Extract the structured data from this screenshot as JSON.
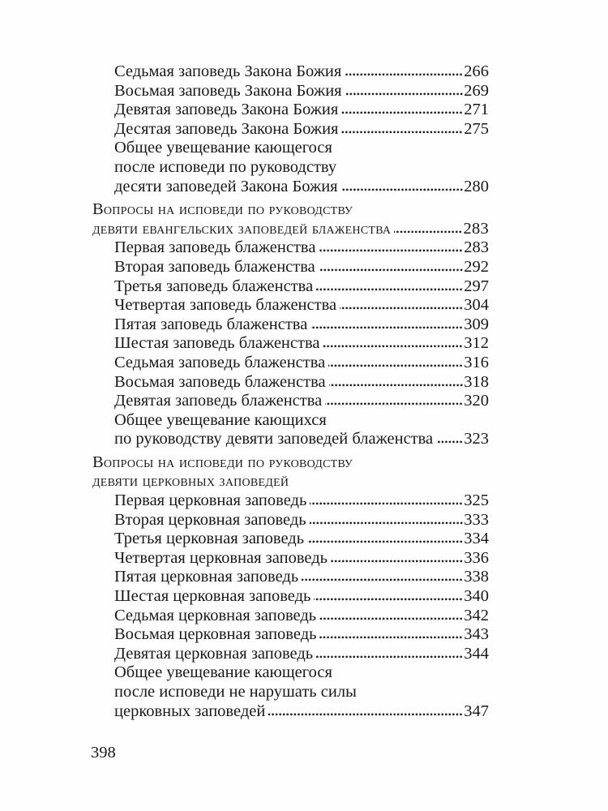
{
  "document": {
    "kind": "book-table-of-contents-scan",
    "language": "ru",
    "folio": "398",
    "background_color": "#fefefe",
    "text_color": "#1a1a1a"
  },
  "toc": {
    "sections": [
      {
        "items": [
          {
            "lines": [
              "Седьмая заповедь Закона Божия"
            ],
            "page": "266"
          },
          {
            "lines": [
              "Восьмая заповедь Закона Божия"
            ],
            "page": "269"
          },
          {
            "lines": [
              "Девятая заповедь Закона Божия"
            ],
            "page": "271"
          },
          {
            "lines": [
              "Десятая заповедь Закона Божия"
            ],
            "page": "275"
          },
          {
            "lines": [
              "Общее увещевание кающегося",
              "после исповеди по руководству",
              "десяти заповедей Закона Божия"
            ],
            "page": "280"
          }
        ]
      },
      {
        "header": {
          "lines": [
            "Вопросы на исповеди по руководству",
            "девяти евангельских заповедей блаженства"
          ],
          "page": "283"
        },
        "items": [
          {
            "lines": [
              "Первая заповедь блаженства"
            ],
            "page": "283"
          },
          {
            "lines": [
              "Вторая заповедь блаженства"
            ],
            "page": "292"
          },
          {
            "lines": [
              "Третья заповедь блаженства"
            ],
            "page": "297"
          },
          {
            "lines": [
              "Четвертая заповедь блаженства"
            ],
            "page": "304"
          },
          {
            "lines": [
              "Пятая заповедь блаженства"
            ],
            "page": "309"
          },
          {
            "lines": [
              "Шестая заповедь блаженства"
            ],
            "page": "312"
          },
          {
            "lines": [
              "Седьмая заповедь блаженства"
            ],
            "page": "316"
          },
          {
            "lines": [
              "Восьмая заповедь блаженства"
            ],
            "page": "318"
          },
          {
            "lines": [
              "Девятая заповедь блаженства"
            ],
            "page": "320"
          },
          {
            "lines": [
              "Общее увещевание кающихся",
              "по руководству девяти заповедей блаженства"
            ],
            "page": "323"
          }
        ]
      },
      {
        "header": {
          "lines": [
            "Вопросы на исповеди по руководству",
            "девяти церковных заповедей"
          ],
          "page": ""
        },
        "items": [
          {
            "lines": [
              "Первая церковная заповедь"
            ],
            "page": "325"
          },
          {
            "lines": [
              "Вторая церковная заповедь"
            ],
            "page": "333"
          },
          {
            "lines": [
              "Третья церковная заповедь"
            ],
            "page": "334"
          },
          {
            "lines": [
              "Четвертая церковная заповедь"
            ],
            "page": "336"
          },
          {
            "lines": [
              "Пятая церковная заповедь"
            ],
            "page": "338"
          },
          {
            "lines": [
              "Шестая церковная заповедь"
            ],
            "page": "340"
          },
          {
            "lines": [
              "Седьмая церковная заповедь"
            ],
            "page": "342"
          },
          {
            "lines": [
              "Восьмая церковная заповедь"
            ],
            "page": "343"
          },
          {
            "lines": [
              "Девятая церковная заповедь"
            ],
            "page": "344"
          },
          {
            "lines": [
              "Общее увещевание кающегося",
              "после исповеди не нарушать силы",
              "церковных заповедей"
            ],
            "page": "347"
          }
        ]
      }
    ]
  }
}
